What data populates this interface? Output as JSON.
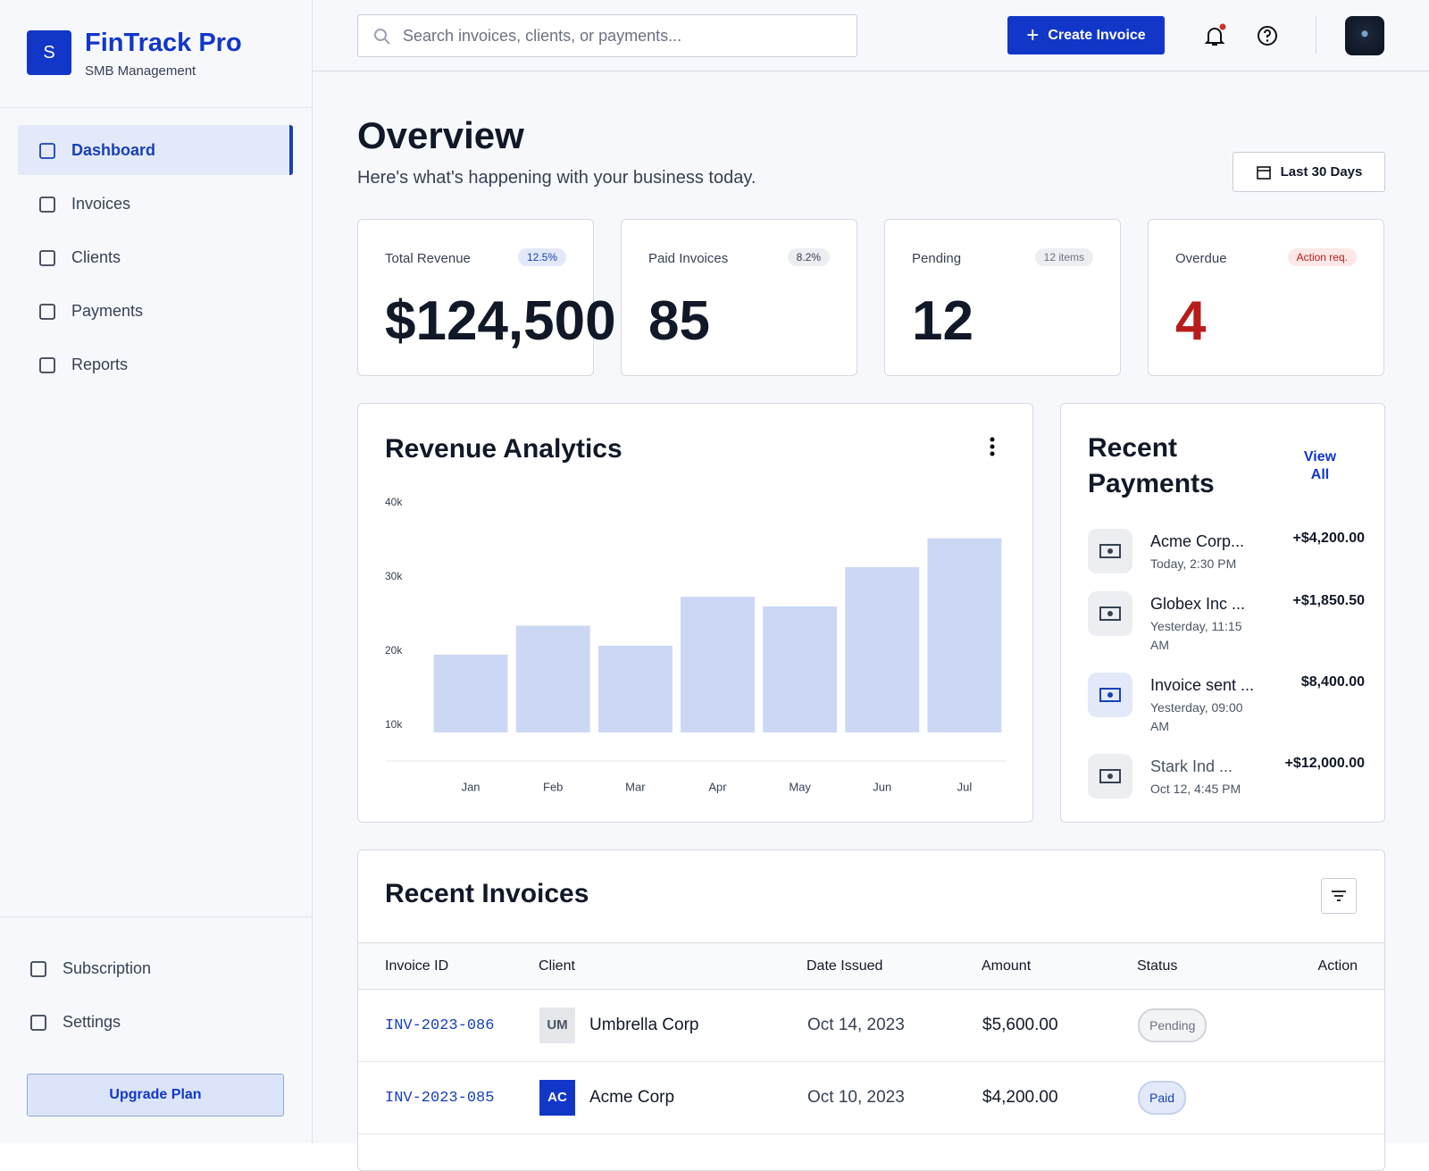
{
  "sidebar": {
    "logo_letter": "S",
    "brand": "FinTrack Pro",
    "tagline": "SMB Management",
    "nav": [
      "Dashboard",
      "Invoices",
      "Clients",
      "Payments",
      "Reports"
    ],
    "bottom_nav": [
      "Subscription",
      "Settings"
    ],
    "upgrade": "Upgrade Plan"
  },
  "header": {
    "search_placeholder": "Search invoices, clients, or payments...",
    "create_button": "Create Invoice"
  },
  "overview": {
    "title": "Overview",
    "subtitle": "Here's what's happening with your business today.",
    "range": "Last 30 Days"
  },
  "stats": [
    {
      "label": "Total Revenue",
      "badge": "12.5%",
      "value": "$124,500"
    },
    {
      "label": "Paid Invoices",
      "badge": "8.2%",
      "value": "85"
    },
    {
      "label": "Pending",
      "badge": "12 items",
      "value": "12"
    },
    {
      "label": "Overdue",
      "badge": "Action req.",
      "value": "4"
    }
  ],
  "chart_data": {
    "type": "bar",
    "title": "Revenue Analytics",
    "categories": [
      "Jan",
      "Feb",
      "Mar",
      "Apr",
      "May",
      "Jun",
      "Jul"
    ],
    "values": [
      20500,
      24400,
      21700,
      28300,
      27000,
      32300,
      36200
    ],
    "color": "#ccd8f3",
    "ylim": [
      10000,
      40000
    ],
    "yticks": [
      {
        "value": 10000,
        "label": "10k"
      },
      {
        "value": 20000,
        "label": "20k"
      },
      {
        "value": 30000,
        "label": "30k"
      },
      {
        "value": 40000,
        "label": "40k"
      }
    ],
    "grid": false
  },
  "payments": {
    "title": "Recent Payments",
    "view_all": "View All",
    "items": [
      {
        "name": "Acme Corp...",
        "time": "Today, 2:30 PM",
        "amount": "+$4,200.00"
      },
      {
        "name": "Globex Inc ...",
        "time": "Yesterday, 11:15 AM",
        "amount": "+$1,850.50"
      },
      {
        "name": "Invoice sent ...",
        "time": "Yesterday, 09:00 AM",
        "amount": "$8,400.00"
      },
      {
        "name": "Stark Ind ...",
        "time": "Oct 12, 4:45 PM",
        "amount": "+$12,000.00"
      }
    ]
  },
  "invoices": {
    "title": "Recent Invoices",
    "columns": [
      "Invoice ID",
      "Client",
      "Date Issued",
      "Amount",
      "Status",
      "Action"
    ],
    "rows": [
      [
        "INV-2023-086",
        "UM",
        "Umbrella Corp",
        "Oct 14, 2023",
        "$5,600.00",
        "Pending"
      ],
      [
        "INV-2023-085",
        "AC",
        "Acme Corp",
        "Oct 10, 2023",
        "$4,200.00",
        "Paid"
      ]
    ]
  }
}
